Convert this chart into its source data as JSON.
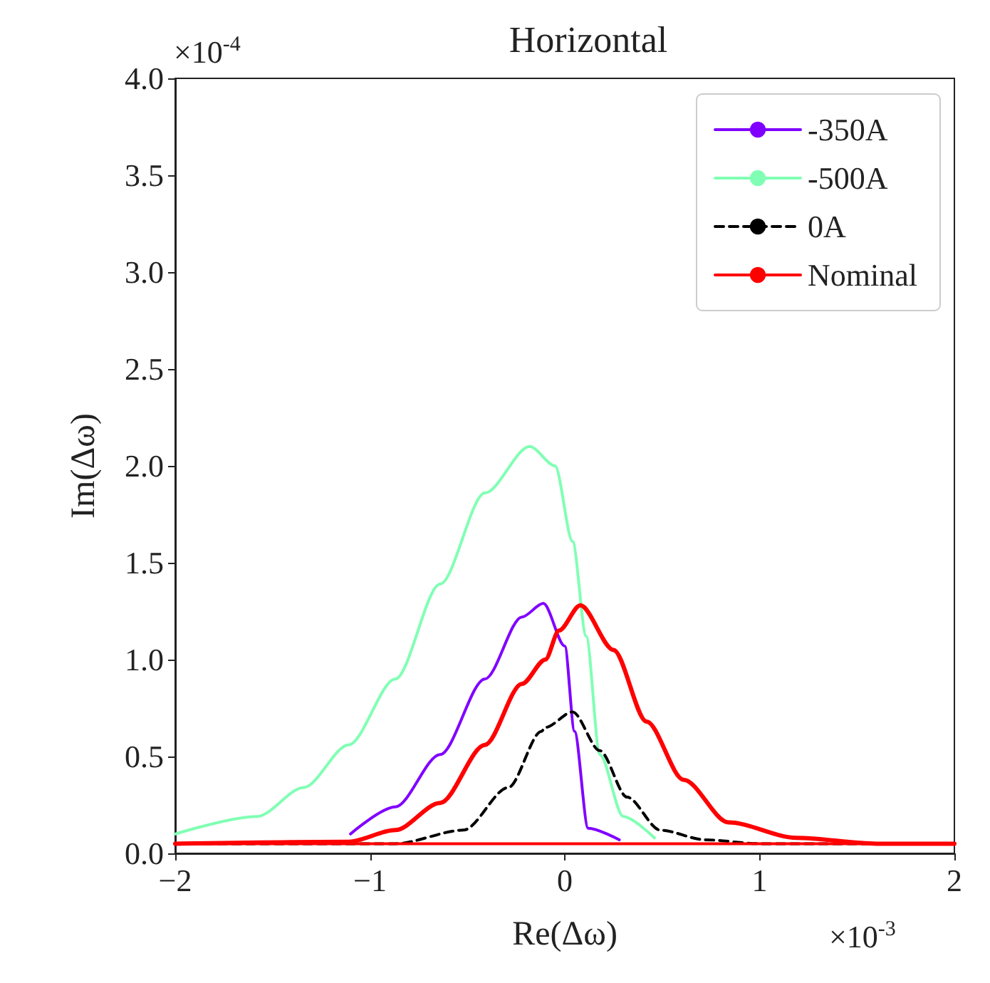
{
  "chart_data": {
    "type": "line",
    "title": "Horizontal",
    "xlabel": "Re(Δω)",
    "ylabel": "Im(Δω)",
    "annotations": [
      "×10$^{-4}$",
      "×10$^{-3}$"
    ],
    "xlim": [
      -2,
      2
    ],
    "xticks": [
      {
        "value": -2,
        "label": "−2"
      },
      {
        "value": -1,
        "label": "−1"
      },
      {
        "value": 0,
        "label": "0"
      },
      {
        "value": 1,
        "label": "1"
      },
      {
        "value": 2,
        "label": "2"
      }
    ],
    "ylim": [
      0,
      4
    ],
    "yticks": [
      {
        "value": 0,
        "label": "0.0"
      },
      {
        "value": 0.5,
        "label": "0.5"
      },
      {
        "value": 1,
        "label": "1.0"
      },
      {
        "value": 1.5,
        "label": "1.5"
      },
      {
        "value": 2,
        "label": "2.0"
      },
      {
        "value": 2.5,
        "label": "2.5"
      },
      {
        "value": 3,
        "label": "3.0"
      },
      {
        "value": 3.5,
        "label": "3.5"
      },
      {
        "value": 4,
        "label": "4.0"
      }
    ],
    "grid": false,
    "legend": "top right",
    "marker": "none",
    "series": [
      {
        "name": "-350A",
        "color": "#8000ff",
        "line_style": "solid",
        "x": [
          -1.1,
          -0.87,
          -0.64,
          -0.41,
          -0.22,
          -0.11,
          0,
          0.05,
          0.12,
          0.28
        ],
        "values": [
          0.1,
          0.24,
          0.51,
          0.9,
          1.22,
          1.29,
          1.07,
          0.63,
          0.13,
          0.07
        ]
      },
      {
        "name": "-500A",
        "color": "#80ffb4",
        "line_style": "solid",
        "x": [
          -2,
          -1.58,
          -1.34,
          -1.11,
          -0.87,
          -0.64,
          -0.41,
          -0.18,
          -0.05,
          0.04,
          0.11,
          0.18,
          0.3,
          0.46
        ],
        "values": [
          0.1,
          0.19,
          0.34,
          0.56,
          0.9,
          1.39,
          1.86,
          2.1,
          2,
          1.61,
          1.12,
          0.51,
          0.19,
          0.08
        ]
      },
      {
        "name": "0A",
        "color": "#000000",
        "line_style": "dashed",
        "x": [
          -2,
          -0.87,
          -0.52,
          -0.29,
          -0.12,
          -0.1,
          0.04,
          0.18,
          0.32,
          0.49,
          0.72,
          1,
          2
        ],
        "values": [
          0.05,
          0.05,
          0.12,
          0.34,
          0.63,
          0.65,
          0.73,
          0.53,
          0.29,
          0.12,
          0.07,
          0.05,
          0.05
        ]
      },
      {
        "name": "Nominal",
        "color": "#ff0000",
        "line_style": "solid",
        "x": [
          -2,
          2
        ],
        "values": [
          0.05,
          0.05
        ]
      },
      {
        "color": "#ff0000",
        "line_style": "solid",
        "x": [
          -2,
          -1.11,
          -0.87,
          -0.64,
          -0.41,
          -0.22,
          -0.1,
          -0.03,
          0.08,
          0.25,
          0.42,
          0.61,
          0.84,
          1.19,
          1.6,
          2
        ],
        "values": [
          0.05,
          0.06,
          0.12,
          0.26,
          0.56,
          0.875,
          1.0,
          1.15,
          1.28,
          1.05,
          0.68,
          0.38,
          0.16,
          0.08,
          0.05,
          0.05
        ]
      }
    ]
  }
}
